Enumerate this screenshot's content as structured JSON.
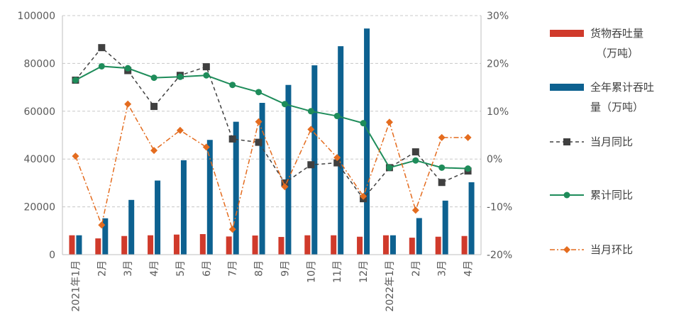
{
  "chart_data": {
    "type": "bar+line",
    "categories": [
      "2021年1月",
      "2月",
      "3月",
      "4月",
      "5月",
      "6月",
      "7月",
      "8月",
      "9月",
      "10月",
      "11月",
      "12月",
      "2022年1月",
      "2月",
      "3月",
      "4月"
    ],
    "bar_series": [
      {
        "name": "货物吞吐量（万吨）",
        "color": "#d03a2b",
        "values": [
          8100,
          6800,
          7800,
          8100,
          8400,
          8600,
          7600,
          8000,
          7400,
          8100,
          8100,
          7500,
          8100,
          7100,
          7500,
          7800
        ]
      },
      {
        "name": "全年累计吞吐量（万吨）",
        "color": "#0d6190",
        "values": [
          8100,
          15200,
          22900,
          31000,
          39500,
          48000,
          55600,
          63500,
          71000,
          79200,
          87200,
          94600,
          8100,
          15300,
          22600,
          30300
        ]
      }
    ],
    "line_series": [
      {
        "name": "当月同比",
        "color": "#404040",
        "marker": "square",
        "dash": "dashed",
        "values": [
          16.5,
          23.3,
          18.5,
          11.0,
          17.5,
          19.3,
          4.2,
          3.5,
          -5.0,
          -1.2,
          -0.8,
          -8.3,
          -1.8,
          1.5,
          -4.9,
          -2.5
        ]
      },
      {
        "name": "累计同比",
        "color": "#1e8c5a",
        "marker": "circle",
        "dash": "solid",
        "values": [
          16.5,
          19.4,
          19.0,
          17.0,
          17.2,
          17.5,
          15.5,
          14.0,
          11.5,
          10.0,
          9.0,
          7.5,
          -1.8,
          -0.3,
          -1.8,
          -2.0
        ]
      },
      {
        "name": "当月环比",
        "color": "#e46c1f",
        "marker": "diamond",
        "dash": "dashdot",
        "values": [
          0.6,
          -13.8,
          11.5,
          1.8,
          6.0,
          2.5,
          -14.7,
          7.8,
          -5.8,
          6.2,
          0.3,
          -7.8,
          7.7,
          -10.7,
          4.5,
          4.5
        ]
      }
    ],
    "y_left": {
      "min": 0,
      "max": 100000,
      "ticks": [
        "0",
        "20000",
        "40000",
        "60000",
        "80000",
        "100000"
      ]
    },
    "y_right": {
      "min": -20,
      "max": 30,
      "ticks": [
        "-20%",
        "-10%",
        "0%",
        "10%",
        "20%",
        "30%"
      ]
    },
    "grid": true,
    "legend_position": "right"
  },
  "legend": {
    "items": [
      {
        "line1": "货物吞吐量",
        "line2": "（万吨）"
      },
      {
        "line1": "全年累计吞吐",
        "line2": "量（万吨）"
      },
      {
        "line1": "当月同比",
        "line2": ""
      },
      {
        "line1": "累计同比",
        "line2": ""
      },
      {
        "line1": "当月环比",
        "line2": ""
      }
    ]
  }
}
